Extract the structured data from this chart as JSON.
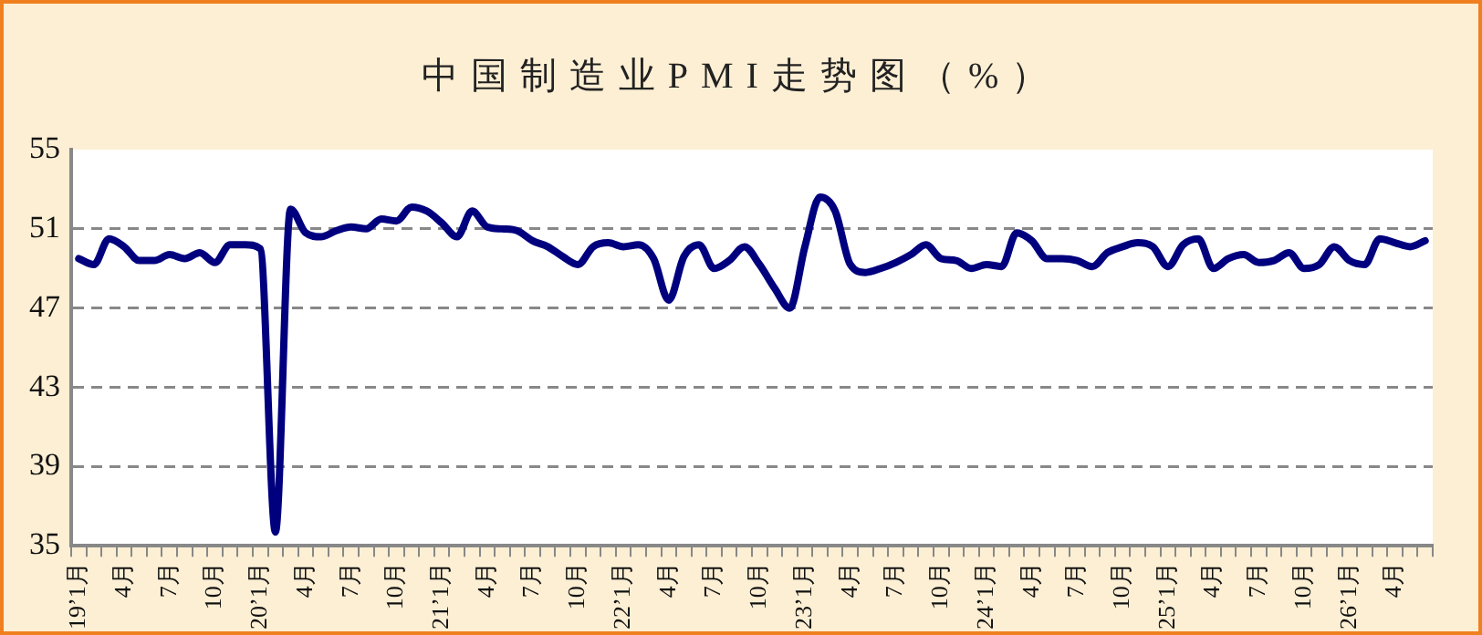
{
  "chart_data": {
    "type": "line",
    "title": "中国制造业PMI走势图（%）",
    "categories": [
      "19’1月",
      null,
      null,
      "4月",
      null,
      null,
      "7月",
      null,
      null,
      "10月",
      null,
      null,
      "20’1月",
      null,
      null,
      "4月",
      null,
      null,
      "7月",
      null,
      null,
      "10月",
      null,
      null,
      "21’1月",
      null,
      null,
      "4月",
      null,
      null,
      "7月",
      null,
      null,
      "10月",
      null,
      null,
      "22’1月",
      null,
      null,
      "4月",
      null,
      null,
      "7月",
      null,
      null,
      "10月",
      null,
      null,
      "23’1月",
      null,
      null,
      "4月",
      null,
      null,
      "7月",
      null,
      null,
      "10月",
      null,
      null,
      "24’1月",
      null,
      null,
      "4月",
      null,
      null,
      "7月",
      null,
      null,
      "10月",
      null,
      null,
      "25’1月",
      null,
      null,
      "4月",
      null,
      null,
      "7月",
      null,
      null,
      "10月",
      null,
      null,
      "26’1月",
      null,
      null,
      "4月",
      null,
      null
    ],
    "series": [
      {
        "color": "#00007f",
        "values": [
          49.5,
          49.2,
          50.5,
          50.1,
          49.4,
          49.4,
          49.7,
          49.5,
          49.8,
          49.3,
          50.2,
          50.2,
          50.0,
          35.7,
          52.0,
          50.8,
          50.6,
          50.9,
          51.1,
          51.0,
          51.5,
          51.4,
          52.1,
          51.9,
          51.3,
          50.6,
          51.9,
          51.1,
          51.0,
          50.9,
          50.4,
          50.1,
          49.6,
          49.2,
          50.1,
          50.3,
          50.1,
          50.2,
          49.5,
          47.4,
          49.6,
          50.2,
          49.0,
          49.4,
          50.1,
          49.2,
          48.0,
          47.0,
          50.1,
          52.6,
          51.9,
          49.2,
          48.8,
          49.0,
          49.3,
          49.7,
          50.2,
          49.5,
          49.4,
          49.0,
          49.2,
          49.1,
          50.8,
          50.4,
          49.5,
          49.5,
          49.4,
          49.1,
          49.8,
          50.1,
          50.3,
          50.1,
          49.1,
          50.2,
          50.5,
          49.0,
          49.5,
          49.7,
          49.3,
          49.4,
          49.8,
          49.0,
          49.2,
          50.1,
          49.4,
          49.2,
          50.5,
          50.3,
          50.1,
          50.4
        ]
      }
    ],
    "ylim": [
      35,
      55
    ],
    "yticks": [
      35,
      39,
      43,
      47,
      51,
      55
    ],
    "grid": "y",
    "legend": false,
    "line_style": "solid",
    "marker": "none"
  }
}
